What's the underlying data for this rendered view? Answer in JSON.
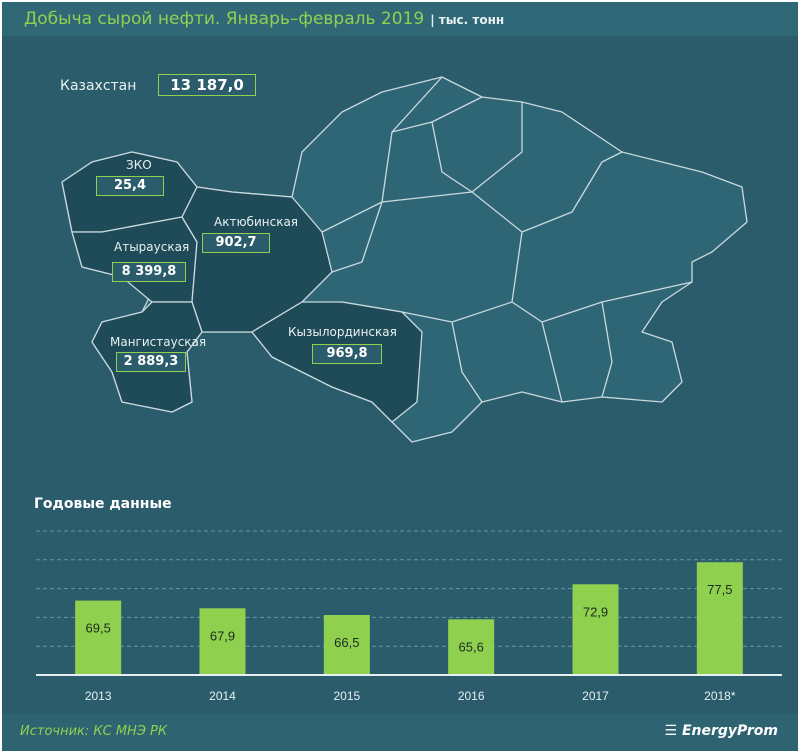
{
  "title": "Добыча сырой нефти. Январь–февраль 2019",
  "units": "| тыс. тонн",
  "country": {
    "label": "Казахстан",
    "value": "13 187,0"
  },
  "regions": [
    {
      "name": "ЗКО",
      "value": "25,4"
    },
    {
      "name": "Атырауская",
      "value": "8 399,8"
    },
    {
      "name": "Актюбинская",
      "value": "902,7"
    },
    {
      "name": "Мангистауская",
      "value": "2 889,3"
    },
    {
      "name": "Кызылординская",
      "value": "969,8"
    }
  ],
  "colors": {
    "background": "#2a5c6b",
    "accent": "#8fd14f",
    "oil_region": "#1f4a57",
    "other_region": "#2f6675"
  },
  "chart_data": {
    "type": "bar",
    "title": "Годовые данные",
    "categories": [
      "2013",
      "2014",
      "2015",
      "2016",
      "2017",
      "2018*"
    ],
    "values": [
      69.5,
      67.9,
      66.5,
      65.6,
      72.9,
      77.5
    ],
    "labels": [
      "69,5",
      "67,9",
      "66,5",
      "65,6",
      "72,9",
      "77,5"
    ],
    "ylim": [
      54,
      84
    ],
    "grid": true,
    "bar_color": "#8fd14f"
  },
  "footer": {
    "source": "Источник: КС МНЭ РК",
    "logo": "EnergyProm"
  }
}
